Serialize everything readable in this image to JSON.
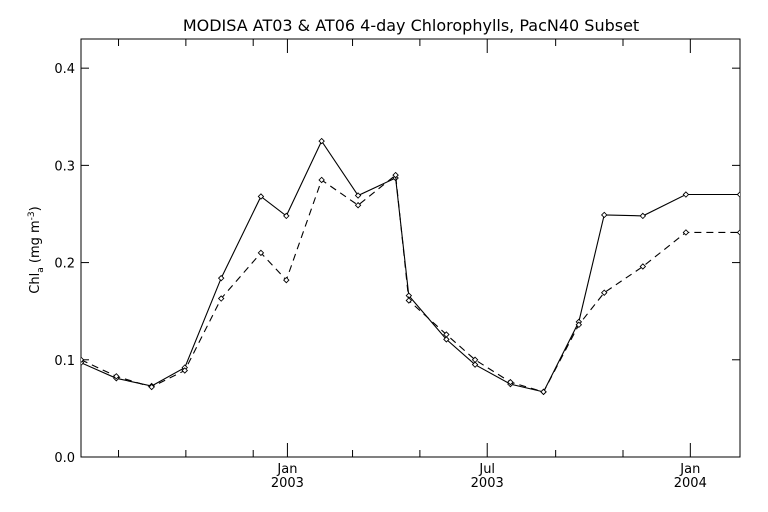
{
  "chart_data": {
    "type": "line",
    "title": "MODISA AT03 & AT06 4-day Chlorophylls, PacN40 Subset",
    "ylabel": {
      "base": "Chl",
      "base_sub": "a",
      "unit_open": " (mg m",
      "unit_sup": "-3",
      "unit_close": ")"
    },
    "xlabel": "",
    "ylim": [
      0.0,
      0.43
    ],
    "xlim": [
      "2002-06-28",
      "2004-02-15"
    ],
    "y_ticks": [
      {
        "value": 0.0,
        "label": "0.0"
      },
      {
        "value": 0.1,
        "label": "0.1"
      },
      {
        "value": 0.2,
        "label": "0.2"
      },
      {
        "value": 0.3,
        "label": "0.3"
      },
      {
        "value": 0.4,
        "label": "0.4"
      }
    ],
    "x_major_ticks": [
      {
        "date": "2003-01-01",
        "month": "Jan",
        "year": "2003"
      },
      {
        "date": "2003-07-01",
        "month": "Jul",
        "year": "2003"
      },
      {
        "date": "2004-01-01",
        "month": "Jan",
        "year": "2004"
      }
    ],
    "x_minor_ticks": [
      "2002-08-01",
      "2002-10-01",
      "2002-12-01",
      "2003-03-01",
      "2003-05-01",
      "2003-09-01",
      "2003-11-01"
    ],
    "grid": false,
    "legend": "none",
    "series": [
      {
        "style": "solid",
        "x": [
          "2002-06-28",
          "2002-07-30",
          "2002-08-31",
          "2002-09-30",
          "2002-11-02",
          "2002-12-08",
          "2002-12-31",
          "2003-02-01",
          "2003-03-06",
          "2003-04-09",
          "2003-04-21",
          "2003-05-25",
          "2003-06-20",
          "2003-07-22",
          "2003-08-21",
          "2003-09-22",
          "2003-10-15",
          "2003-11-19",
          "2003-12-28",
          "2004-02-15"
        ],
        "values": [
          0.097,
          0.081,
          0.073,
          0.092,
          0.184,
          0.268,
          0.248,
          0.325,
          0.269,
          0.287,
          0.166,
          0.121,
          0.095,
          0.075,
          0.067,
          0.139,
          0.249,
          0.248,
          0.27,
          0.27
        ]
      },
      {
        "style": "dashed",
        "x": [
          "2002-06-28",
          "2002-07-30",
          "2002-08-31",
          "2002-09-30",
          "2002-11-02",
          "2002-12-08",
          "2002-12-31",
          "2003-02-01",
          "2003-03-06",
          "2003-04-09",
          "2003-04-21",
          "2003-05-25",
          "2003-06-20",
          "2003-07-22",
          "2003-08-21",
          "2003-09-22",
          "2003-10-15",
          "2003-11-19",
          "2003-12-28",
          "2004-02-15"
        ],
        "values": [
          0.1,
          0.083,
          0.072,
          0.089,
          0.163,
          0.21,
          0.182,
          0.285,
          0.259,
          0.29,
          0.161,
          0.126,
          0.1,
          0.077,
          0.067,
          0.136,
          0.169,
          0.196,
          0.231,
          0.231
        ]
      }
    ]
  }
}
